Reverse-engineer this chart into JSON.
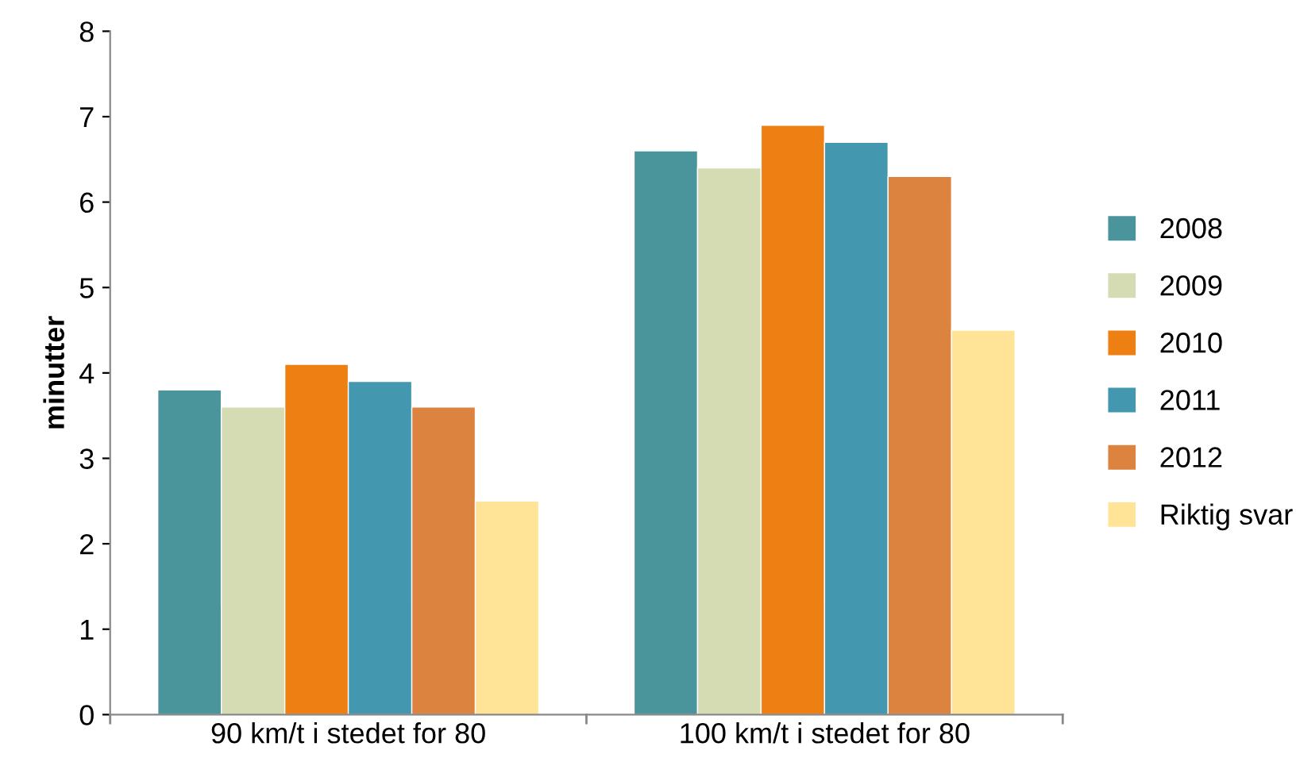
{
  "chart_data": {
    "type": "bar",
    "ylabel": "minutter",
    "categories": [
      "90 km/t i stedet for 80",
      "100 km/t i stedet for 80"
    ],
    "series": [
      {
        "name": "2008",
        "color": "#4a959c",
        "values": [
          3.8,
          6.6
        ]
      },
      {
        "name": "2009",
        "color": "#d5dcb3",
        "values": [
          3.6,
          6.4
        ]
      },
      {
        "name": "2010",
        "color": "#ee8013",
        "values": [
          4.1,
          6.9
        ]
      },
      {
        "name": "2011",
        "color": "#4398b0",
        "values": [
          3.9,
          6.7
        ]
      },
      {
        "name": "2012",
        "color": "#dc843f",
        "values": [
          3.6,
          6.3
        ]
      },
      {
        "name": "Riktig svar",
        "color": "#ffe397",
        "values": [
          2.5,
          4.5
        ]
      }
    ],
    "ylim": [
      0,
      8
    ],
    "yticks": [
      0,
      1,
      2,
      3,
      4,
      5,
      6,
      7,
      8
    ],
    "grid": false,
    "legend": "right"
  }
}
